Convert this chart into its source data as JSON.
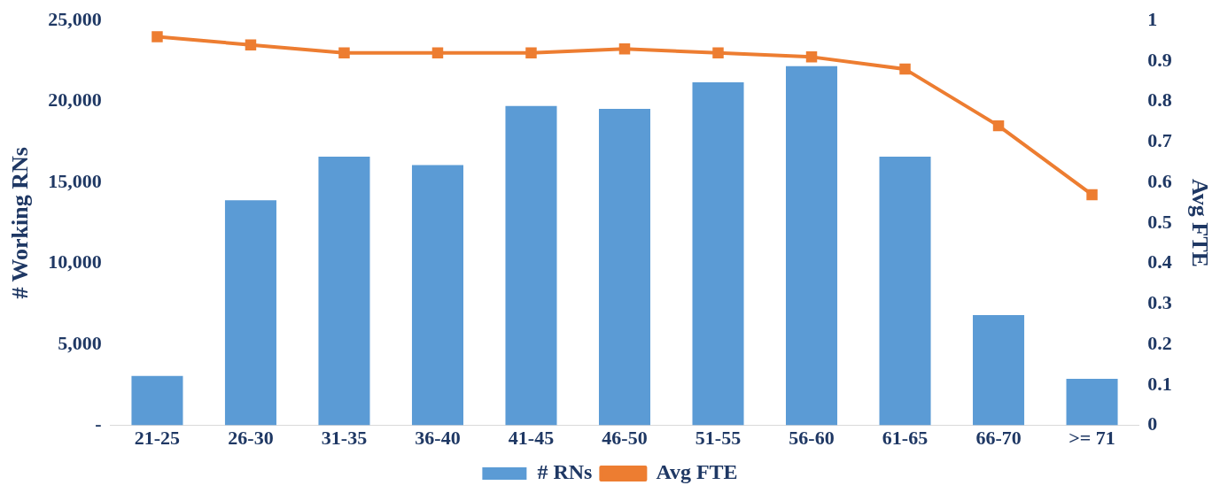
{
  "chart_data": {
    "type": "bar",
    "ylabel": "# Working RNs",
    "y2label": "Avg FTE",
    "categories": [
      "21-25",
      "26-30",
      "31-35",
      "36-40",
      "41-45",
      "46-50",
      "51-55",
      "56-60",
      "61-65",
      "66-70",
      ">= 71"
    ],
    "series": [
      {
        "name": "# RNs",
        "color": "#5b9bd5",
        "values": [
          3050,
          13900,
          16600,
          16080,
          19720,
          19540,
          21190,
          22180,
          16600,
          6810,
          2880
        ]
      },
      {
        "name": "Avg FTE",
        "type": "line",
        "axis": "y2",
        "color": "#ed7d31",
        "values": [
          0.96,
          0.94,
          0.92,
          0.92,
          0.92,
          0.93,
          0.92,
          0.91,
          0.88,
          0.74,
          0.57
        ]
      }
    ],
    "ylim": [
      0,
      25000
    ],
    "yticks": [
      {
        "value": 0,
        "label": "-"
      },
      {
        "value": 5000,
        "label": "5,000"
      },
      {
        "value": 10000,
        "label": "10,000"
      },
      {
        "value": 15000,
        "label": "15,000"
      },
      {
        "value": 20000,
        "label": "20,000"
      },
      {
        "value": 25000,
        "label": "25,000"
      }
    ],
    "y2lim": [
      0,
      1
    ],
    "y2ticks": [
      0,
      0.1,
      0.2,
      0.3,
      0.4,
      0.5,
      0.6,
      0.7,
      0.8,
      0.9,
      1
    ],
    "grid": false,
    "legend": "bottom",
    "marker": "square",
    "line_style": "solid"
  }
}
